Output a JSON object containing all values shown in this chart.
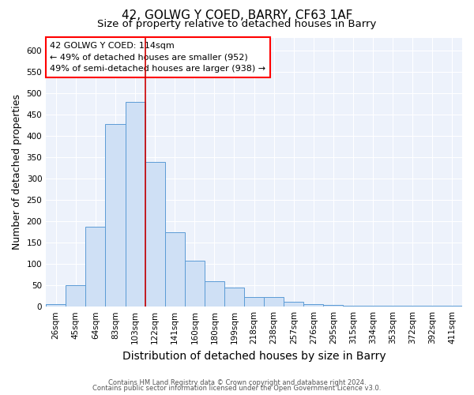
{
  "title": "42, GOLWG Y COED, BARRY, CF63 1AF",
  "subtitle": "Size of property relative to detached houses in Barry",
  "xlabel": "Distribution of detached houses by size in Barry",
  "ylabel": "Number of detached properties",
  "categories": [
    "26sqm",
    "45sqm",
    "64sqm",
    "83sqm",
    "103sqm",
    "122sqm",
    "141sqm",
    "160sqm",
    "180sqm",
    "199sqm",
    "218sqm",
    "238sqm",
    "257sqm",
    "276sqm",
    "295sqm",
    "315sqm",
    "334sqm",
    "353sqm",
    "372sqm",
    "392sqm",
    "411sqm"
  ],
  "values": [
    5,
    50,
    188,
    428,
    480,
    338,
    175,
    107,
    60,
    44,
    22,
    22,
    12,
    5,
    4,
    3,
    3,
    2,
    2,
    2,
    2
  ],
  "bar_color": "#cfe0f5",
  "bar_edge_color": "#5b9bd5",
  "vline_color": "#cc0000",
  "annotation_lines": [
    "42 GOLWG Y COED: 114sqm",
    "← 49% of detached houses are smaller (952)",
    "49% of semi-detached houses are larger (938) →"
  ],
  "ylim": [
    0,
    630
  ],
  "yticks": [
    0,
    50,
    100,
    150,
    200,
    250,
    300,
    350,
    400,
    450,
    500,
    550,
    600
  ],
  "footnote1": "Contains HM Land Registry data © Crown copyright and database right 2024.",
  "footnote2": "Contains public sector information licensed under the Open Government Licence v3.0.",
  "background_color": "#edf2fb",
  "grid_color": "#ffffff",
  "title_fontsize": 11,
  "subtitle_fontsize": 9.5,
  "xlabel_fontsize": 10,
  "ylabel_fontsize": 9,
  "tick_fontsize": 7.5,
  "annotation_fontsize": 8,
  "footnote_fontsize": 6
}
